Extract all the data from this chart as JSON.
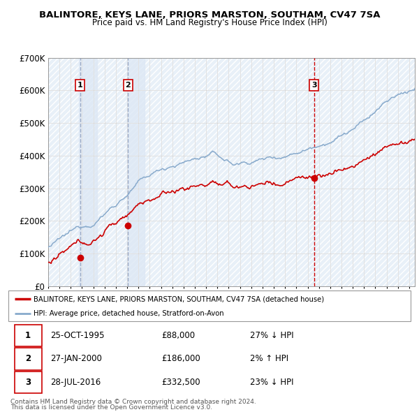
{
  "title": "BALINTORE, KEYS LANE, PRIORS MARSTON, SOUTHAM, CV47 7SA",
  "subtitle": "Price paid vs. HM Land Registry's House Price Index (HPI)",
  "legend_line1": "BALINTORE, KEYS LANE, PRIORS MARSTON, SOUTHAM, CV47 7SA (detached house)",
  "legend_line2": "HPI: Average price, detached house, Stratford-on-Avon",
  "footer1": "Contains HM Land Registry data © Crown copyright and database right 2024.",
  "footer2": "This data is licensed under the Open Government Licence v3.0.",
  "transactions": [
    {
      "num": 1,
      "date_val": 1995.82,
      "price": 88000,
      "label": "1",
      "date_str": "25-OCT-1995",
      "hpi_rel": "27% ↓ HPI"
    },
    {
      "num": 2,
      "date_val": 2000.07,
      "price": 186000,
      "label": "2",
      "date_str": "27-JAN-2000",
      "hpi_rel": "2% ↑ HPI"
    },
    {
      "num": 3,
      "date_val": 2016.57,
      "price": 332500,
      "label": "3",
      "date_str": "28-JUL-2016",
      "hpi_rel": "23% ↓ HPI"
    }
  ],
  "price_line_color": "#cc0000",
  "hpi_line_color": "#88aacc",
  "vline_color_dashed": "#aaaacc",
  "vline_color_red": "#cc0000",
  "box_color": "#cc0000",
  "shade_color": "#dde8f5",
  "ylim": [
    0,
    700000
  ],
  "yticks": [
    0,
    100000,
    200000,
    300000,
    400000,
    500000,
    600000,
    700000
  ],
  "xlim_start": 1993.0,
  "xlim_end": 2025.5,
  "grid_color": "#cccccc",
  "bg_color": "#e8f0f8",
  "table_rows": [
    [
      "1",
      "25-OCT-1995",
      "£88,000",
      "27% ↓ HPI"
    ],
    [
      "2",
      "27-JAN-2000",
      "£186,000",
      "2% ↑ HPI"
    ],
    [
      "3",
      "28-JUL-2016",
      "£332,500",
      "23% ↓ HPI"
    ]
  ]
}
